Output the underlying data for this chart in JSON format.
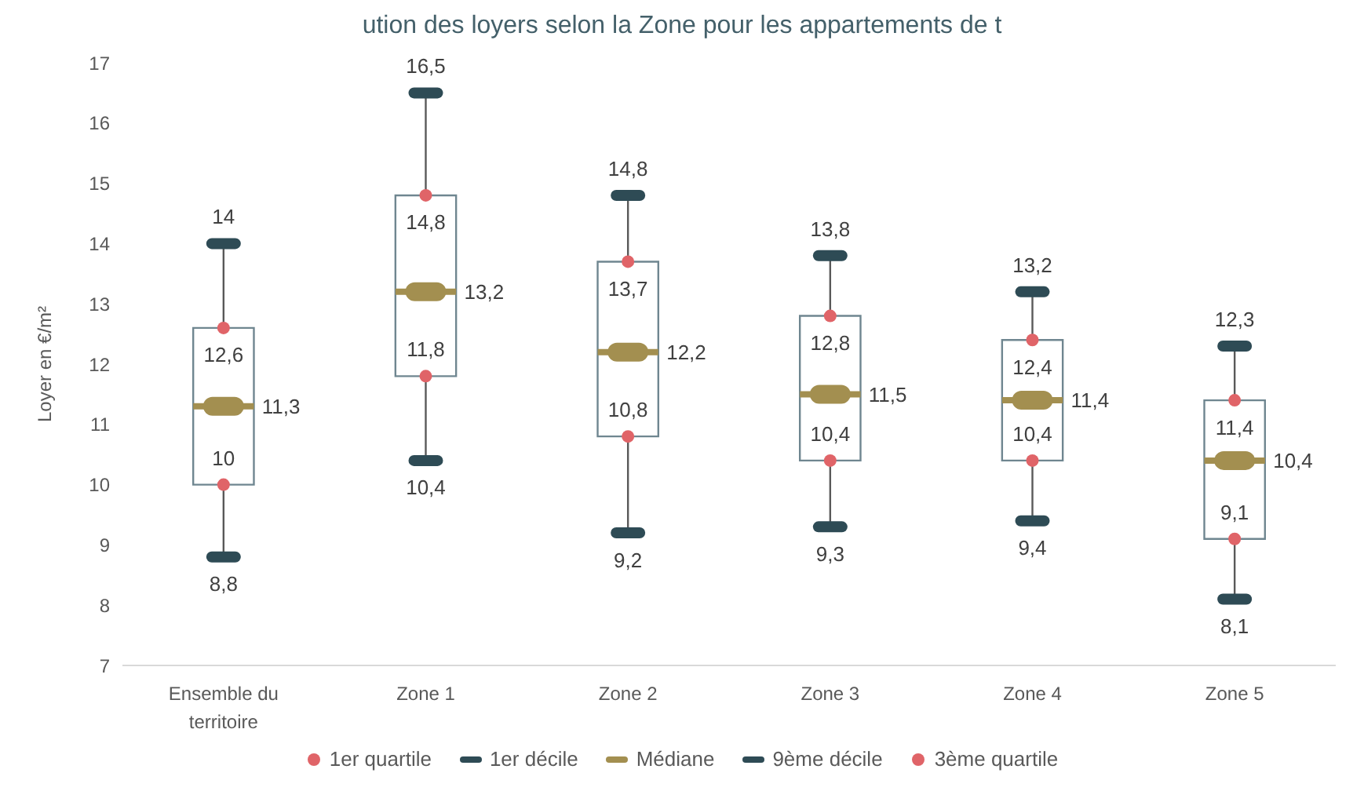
{
  "chart_data": {
    "type": "box",
    "title": "ution des loyers selon la Zone pour les appartements de t",
    "ylabel": "Loyer en €/m²",
    "categories": [
      "Ensemble du territoire",
      "Zone 1",
      "Zone 2",
      "Zone 3",
      "Zone 4",
      "Zone 5"
    ],
    "boxes": [
      {
        "low": 8.8,
        "q1": 10,
        "median": 11.3,
        "q3": 12.6,
        "high": 14
      },
      {
        "low": 10.4,
        "q1": 11.8,
        "median": 13.2,
        "q3": 14.8,
        "high": 16.5
      },
      {
        "low": 9.2,
        "q1": 10.8,
        "median": 12.2,
        "q3": 13.7,
        "high": 14.8
      },
      {
        "low": 9.3,
        "q1": 10.4,
        "median": 11.5,
        "q3": 12.8,
        "high": 13.8
      },
      {
        "low": 9.4,
        "q1": 10.4,
        "median": 11.4,
        "q3": 12.4,
        "high": 13.2
      },
      {
        "low": 8.1,
        "q1": 9.1,
        "median": 10.4,
        "q3": 11.4,
        "high": 12.3
      }
    ],
    "series": [
      {
        "name": "1er quartile",
        "type": "scatter",
        "color": "#e06468",
        "values": [
          10,
          11.8,
          10.8,
          10.4,
          10.4,
          9.1
        ],
        "value_labels": [
          "10",
          "11,8",
          "10,8",
          "10,4",
          "10,4",
          "9,1"
        ]
      },
      {
        "name": "1er décile",
        "type": "scatter",
        "color": "#2e4b55",
        "values": [
          8.8,
          10.4,
          9.2,
          9.3,
          9.4,
          8.1
        ],
        "value_labels": [
          "8,8",
          "10,4",
          "9,2",
          "9,3",
          "9,4",
          "8,1"
        ]
      },
      {
        "name": "Médiane",
        "type": "scatter",
        "color": "#a38f50",
        "values": [
          11.3,
          13.2,
          12.2,
          11.5,
          11.4,
          10.4
        ],
        "value_labels": [
          "11,3",
          "13,2",
          "12,2",
          "11,5",
          "11,4",
          "10,4"
        ]
      },
      {
        "name": "9ème décile",
        "type": "scatter",
        "color": "#2e4b55",
        "values": [
          14,
          16.5,
          14.8,
          13.8,
          13.2,
          12.3
        ],
        "value_labels": [
          "14",
          "16,5",
          "14,8",
          "13,8",
          "13,2",
          "12,3"
        ]
      },
      {
        "name": "3ème quartile",
        "type": "scatter",
        "color": "#e06468",
        "values": [
          12.6,
          14.8,
          13.7,
          12.8,
          12.4,
          11.4
        ],
        "value_labels": [
          "12,6",
          "14,8",
          "13,7",
          "12,8",
          "12,4",
          "11,4"
        ]
      }
    ],
    "ylim": [
      7,
      17
    ],
    "yticks": [
      7,
      8,
      9,
      10,
      11,
      12,
      13,
      14,
      15,
      16,
      17
    ],
    "legend": "bottom",
    "grid": false
  }
}
